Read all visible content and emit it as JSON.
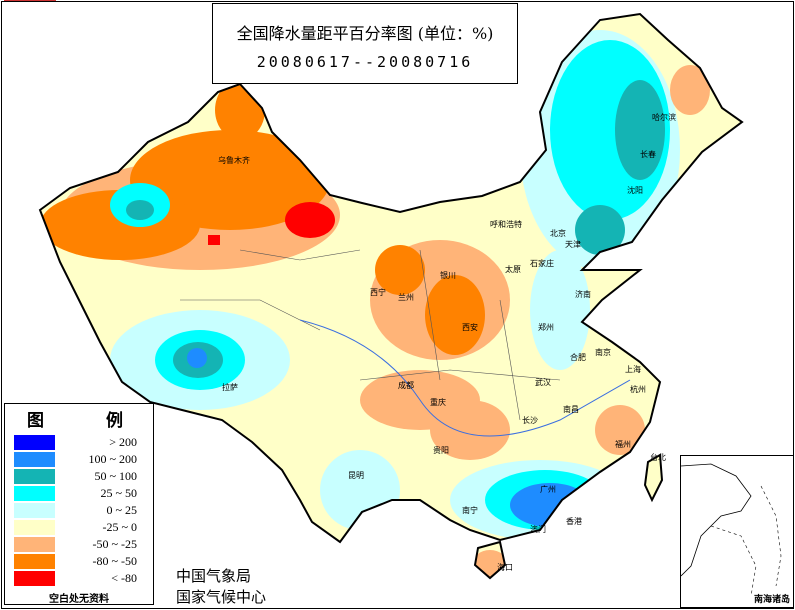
{
  "title": "全国降水量距平百分率图 (单位：%)",
  "date_range": "20080617--20080716",
  "legend": {
    "title": "图 例",
    "items": [
      {
        "label": "> 200",
        "color": "#0000ff"
      },
      {
        "label": "100 ~ 200",
        "color": "#1e8cff"
      },
      {
        "label": "50 ~ 100",
        "color": "#14b4b4"
      },
      {
        "label": "25 ~ 50",
        "color": "#00ffff"
      },
      {
        "label": "0 ~ 25",
        "color": "#c8ffff"
      },
      {
        "label": "-25 ~ 0",
        "color": "#ffffc8"
      },
      {
        "label": "-50 ~ -25",
        "color": "#ffb478"
      },
      {
        "label": "-80 ~ -50",
        "color": "#ff8200"
      },
      {
        "label": "< -80",
        "color": "#ff0000"
      }
    ],
    "no_data_note": "空白处无资料"
  },
  "org_line1": "中国气象局",
  "org_line2": "国家气候中心",
  "inset_label": "南海诸岛",
  "cities": [
    "乌鲁木齐",
    "哈尔滨",
    "长春",
    "沈阳",
    "呼和浩特",
    "北京",
    "天津",
    "石家庄",
    "太原",
    "银川",
    "西宁",
    "兰州",
    "济南",
    "郑州",
    "西安",
    "合肥",
    "南京",
    "上海",
    "武汉",
    "成都",
    "重庆",
    "拉萨",
    "杭州",
    "南昌",
    "长沙",
    "贵阳",
    "福州",
    "台北",
    "昆明",
    "南宁",
    "广州",
    "香港",
    "澳门",
    "海口"
  ]
}
